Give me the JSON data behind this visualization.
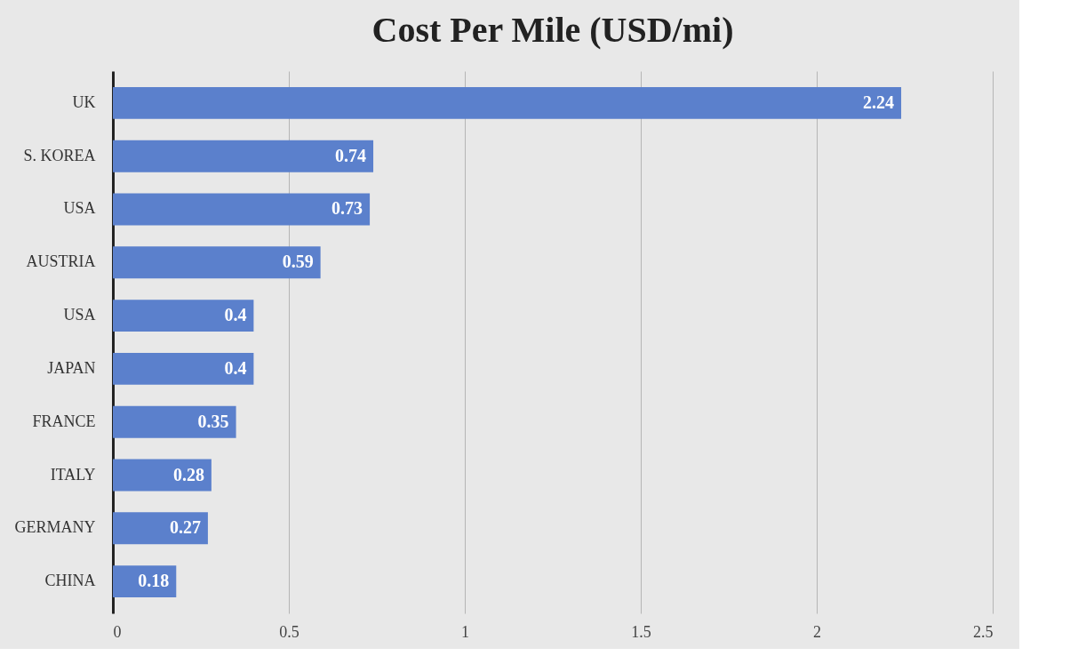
{
  "chart_data": {
    "type": "bar",
    "orientation": "horizontal",
    "title": "Cost Per Mile (USD/mi)",
    "categories": [
      "UK",
      "S. KOREA",
      "USA",
      "AUSTRIA",
      "USA",
      "JAPAN",
      "FRANCE",
      "ITALY",
      "GERMANY",
      "CHINA"
    ],
    "values": [
      2.24,
      0.74,
      0.73,
      0.59,
      0.4,
      0.4,
      0.35,
      0.28,
      0.27,
      0.18
    ],
    "color": "#5b80cc",
    "xlim": [
      0,
      2.5
    ],
    "xticks": [
      0,
      0.5,
      1,
      1.5,
      2,
      2.5
    ],
    "grid": "x",
    "data_labels": true
  }
}
